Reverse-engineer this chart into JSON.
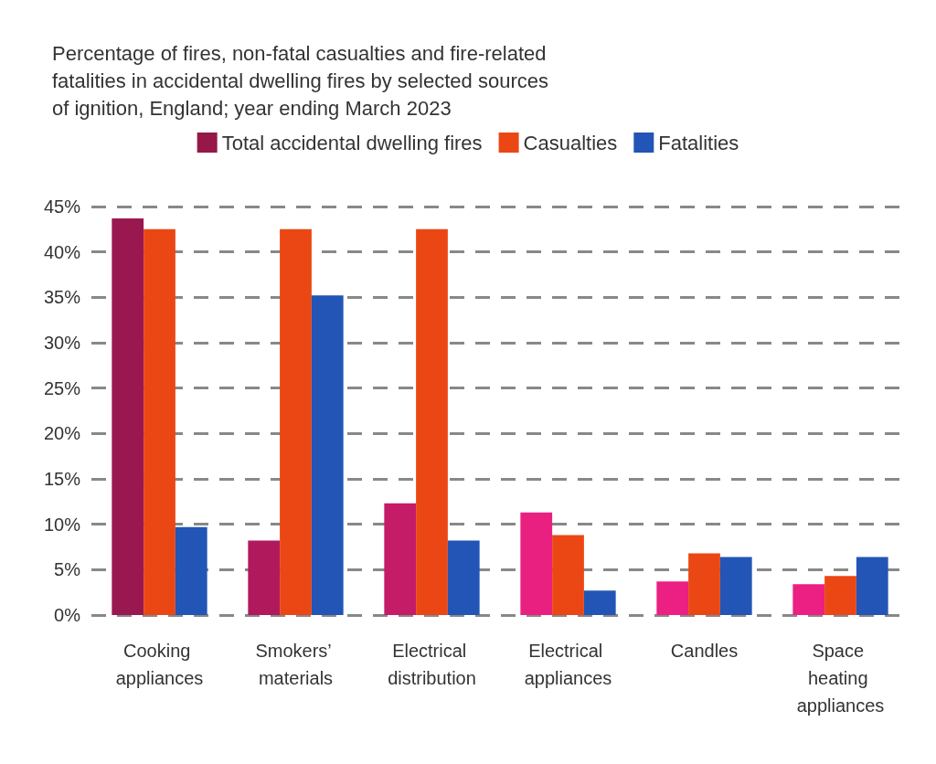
{
  "chart_data": {
    "type": "bar",
    "title": "Percentage of fires, non-fatal casualties and fire-related fatalities in accidental dwelling fires by selected sources of ignition, England; year ending March 2023",
    "categories": [
      "Cooking appliances",
      "Smokers’ materials",
      "Electrical distribution",
      "Electrical appliances",
      "Candles",
      "Space heating appliances"
    ],
    "series": [
      {
        "name": "Total accidental dwelling fires",
        "color": "#951848",
        "colors": [
          "#9a1850",
          "#b01a5c",
          "#c41c66",
          "#ea2080",
          "#ec1f82",
          "#ec1f82"
        ],
        "values": [
          43.7,
          8.2,
          12.3,
          11.3,
          3.7,
          3.4
        ]
      },
      {
        "name": "Casualties",
        "color": "#eb4714",
        "values": [
          42.5,
          42.5,
          42.5,
          8.8,
          6.8,
          4.3
        ]
      },
      {
        "name": "Fatalities",
        "color": "#2255b5",
        "values": [
          9.7,
          35.2,
          8.2,
          2.7,
          6.4,
          6.4
        ]
      }
    ],
    "ylim": [
      0,
      45
    ],
    "yticks": [
      {
        "value": 0,
        "label": "0%"
      },
      {
        "value": 5,
        "label": "5%"
      },
      {
        "value": 10,
        "label": "10%"
      },
      {
        "value": 15,
        "label": "15%"
      },
      {
        "value": 20,
        "label": "20%"
      },
      {
        "value": 25,
        "label": "25%"
      },
      {
        "value": 30,
        "label": "30%"
      },
      {
        "value": 35,
        "label": "35%"
      },
      {
        "value": 40,
        "label": "40%"
      },
      {
        "value": 45,
        "label": "45%"
      }
    ],
    "grid": "y",
    "legend": "top"
  }
}
